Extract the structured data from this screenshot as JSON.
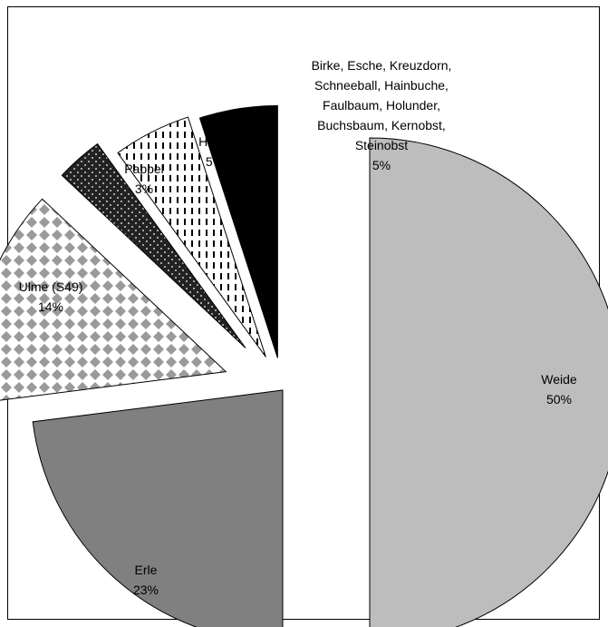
{
  "chart_data": {
    "type": "pie",
    "exploded": true,
    "slices": [
      {
        "label_lines": [
          "Weide"
        ],
        "value": 50,
        "value_label": "50%",
        "fill": "#bdbdbd",
        "pattern": "solid-light-gray"
      },
      {
        "label_lines": [
          "Erle"
        ],
        "value": 23,
        "value_label": "23%",
        "fill": "#808080",
        "pattern": "solid-dark-gray"
      },
      {
        "label_lines": [
          "Ulme (S49)"
        ],
        "value": 14,
        "value_label": "14%",
        "fill": "#9a9a9a",
        "pattern": "diamond-check"
      },
      {
        "label_lines": [
          "Pappel"
        ],
        "value": 3,
        "value_label": "3%",
        "fill": "#222222",
        "pattern": "dots"
      },
      {
        "label_lines": [
          "Hasel"
        ],
        "value": 5,
        "value_label": "5%",
        "fill": "#000000",
        "pattern": "dashes"
      },
      {
        "label_lines": [
          "Birke, Esche, Kreuzdorn,",
          "Schneeball, Hainbuche,",
          "Faulbaum, Holunder,",
          "Buchsbaum, Kernobst,",
          "Steinobst"
        ],
        "value": 5,
        "value_label": "5%",
        "fill": "#000000",
        "pattern": "solid-black"
      }
    ]
  }
}
